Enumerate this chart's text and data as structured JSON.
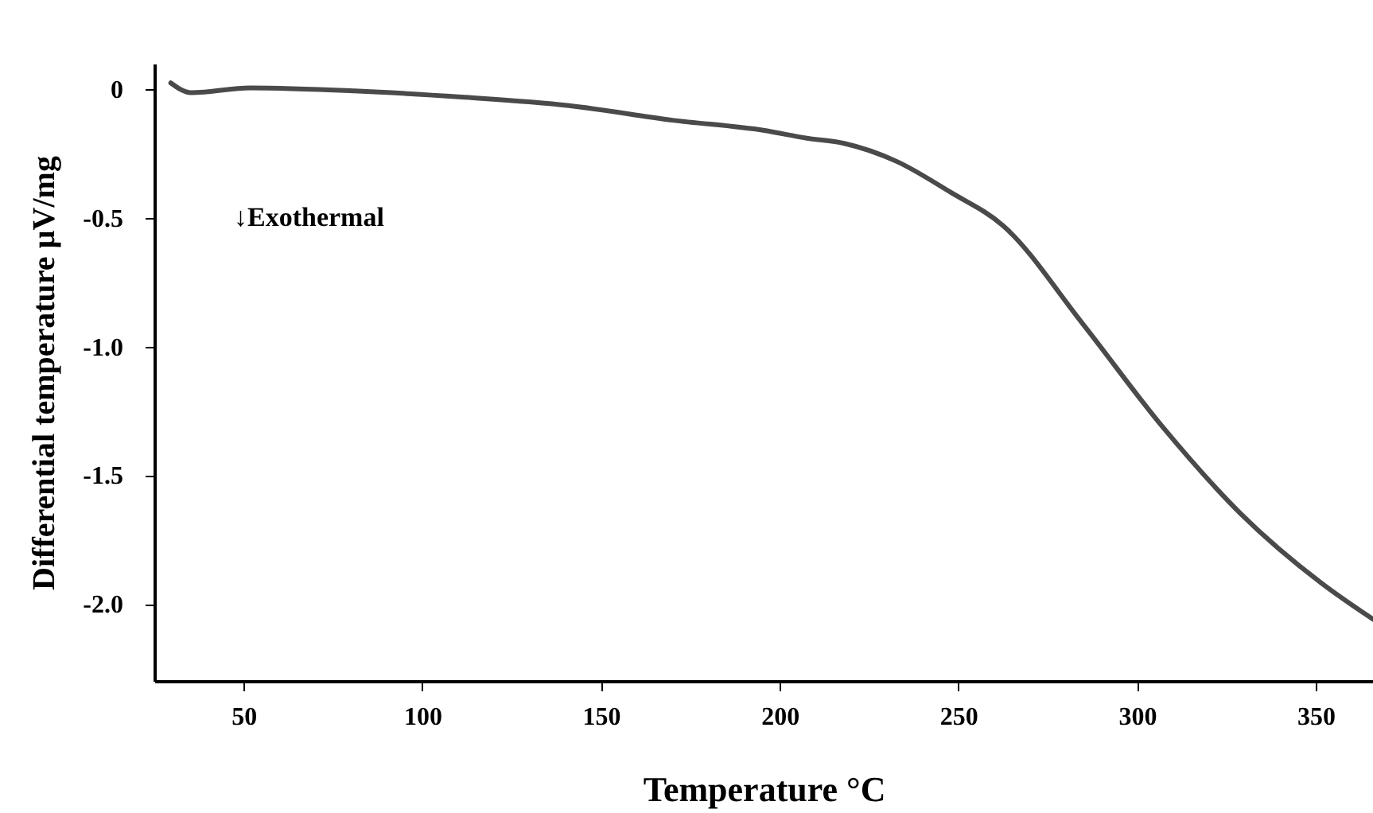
{
  "chart_data": {
    "type": "line",
    "xlabel": "Temperature °C",
    "ylabel": "Differential temperature  µV/mg",
    "annotations": [
      "↓Exothermal"
    ],
    "x": [
      29.6,
      35.3,
      51.8,
      81,
      111,
      141,
      170,
      195.7,
      207.6,
      218,
      232.7,
      247.8,
      262.5,
      284.7,
      307,
      329,
      351.6,
      366
    ],
    "series": [
      {
        "color": "#4a4a4a",
        "values": [
          0.025,
          -0.013,
          0.006,
          -0.006,
          -0.03,
          -0.063,
          -0.12,
          -0.16,
          -0.19,
          -0.21,
          -0.28,
          -0.4,
          -0.53,
          -0.91,
          -1.31,
          -1.65,
          -1.92,
          -2.06
        ]
      }
    ],
    "xlim": [
      25,
      366
    ],
    "xticks": [
      50,
      100,
      150,
      200,
      250,
      300,
      350
    ],
    "ylim": [
      -2.3,
      0.1
    ],
    "yticks": [
      0,
      -0.5,
      {
        "value": -1,
        "label": "-1.0"
      },
      -1.5,
      {
        "value": -2,
        "label": "-2.0"
      }
    ],
    "grid": false,
    "marker": "none",
    "line_style": "solid"
  }
}
